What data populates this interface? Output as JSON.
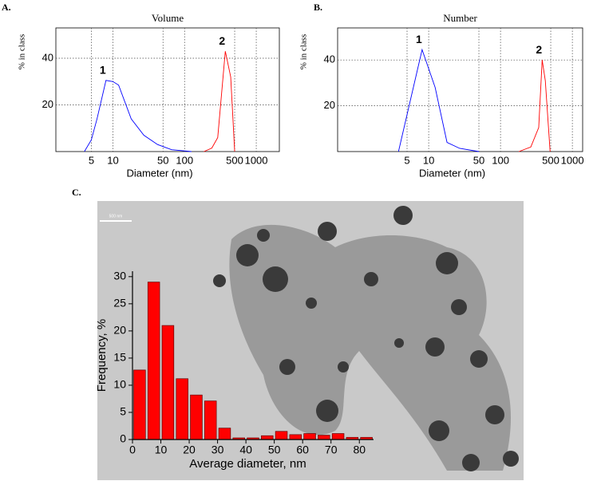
{
  "chart_data": [
    {
      "type": "line",
      "panel": "A.",
      "title": "Volume",
      "xlabel": "Diameter (nm)",
      "ylabel": "% in class",
      "xscale": "log",
      "xlim": [
        1.6,
        2100
      ],
      "xticks": [
        5,
        10,
        50,
        100,
        500,
        1000
      ],
      "ylim": [
        0,
        53
      ],
      "yticks": [
        20,
        40
      ],
      "grid": true,
      "annotations": [
        "1",
        "2"
      ],
      "series": [
        {
          "color": "#0000ff",
          "x": [
            4,
            5,
            6,
            8,
            10,
            12,
            18,
            27,
            42,
            66,
            125
          ],
          "values": [
            0,
            5,
            14,
            30.5,
            30,
            28.5,
            14,
            7,
            3,
            0.8,
            0
          ]
        },
        {
          "color": "#ff0000",
          "x": [
            186,
            240,
            290,
            370,
            440,
            500
          ],
          "values": [
            0,
            1.5,
            6,
            43,
            32,
            0
          ]
        }
      ]
    },
    {
      "type": "line",
      "panel": "B.",
      "title": "Number",
      "xlabel": "Diameter (nm)",
      "ylabel": "% in class",
      "xscale": "log",
      "xlim": [
        0.54,
        1390
      ],
      "xticks": [
        5,
        10,
        50,
        100,
        500,
        1000
      ],
      "ylim": [
        0,
        54
      ],
      "yticks": [
        20,
        40
      ],
      "grid": true,
      "annotations": [
        "1",
        "2"
      ],
      "series": [
        {
          "color": "#0000ff",
          "x": [
            3.8,
            8.1,
            12.3,
            18,
            27,
            50
          ],
          "values": [
            0,
            44.5,
            28,
            4,
            1.4,
            0
          ]
        },
        {
          "color": "#ff0000",
          "x": [
            180,
            264,
            340,
            380,
            420,
            490
          ],
          "values": [
            0,
            2,
            10.5,
            40,
            31,
            0
          ]
        }
      ]
    },
    {
      "type": "histogram",
      "panel": "C.",
      "xlabel": "Average diameter, nm",
      "ylabel": "Frequency, %",
      "scale_bar": "500 nm",
      "color": "#ff0000",
      "bins": [
        0,
        5,
        10,
        15,
        20,
        25,
        30,
        35,
        40,
        45,
        50,
        55,
        60,
        65,
        70,
        75,
        80,
        85
      ],
      "values": [
        12.8,
        29,
        21,
        11.2,
        8.2,
        7.1,
        2.1,
        0.3,
        0.3,
        0.7,
        1.5,
        0.9,
        1.1,
        0.8,
        1.1,
        0.4,
        0.4
      ],
      "xlim": [
        0,
        85
      ],
      "xticks": [
        0,
        10,
        20,
        30,
        40,
        50,
        60,
        70,
        80
      ],
      "ylim": [
        0,
        31
      ],
      "yticks": [
        0,
        5,
        10,
        15,
        20,
        25,
        30
      ]
    }
  ]
}
